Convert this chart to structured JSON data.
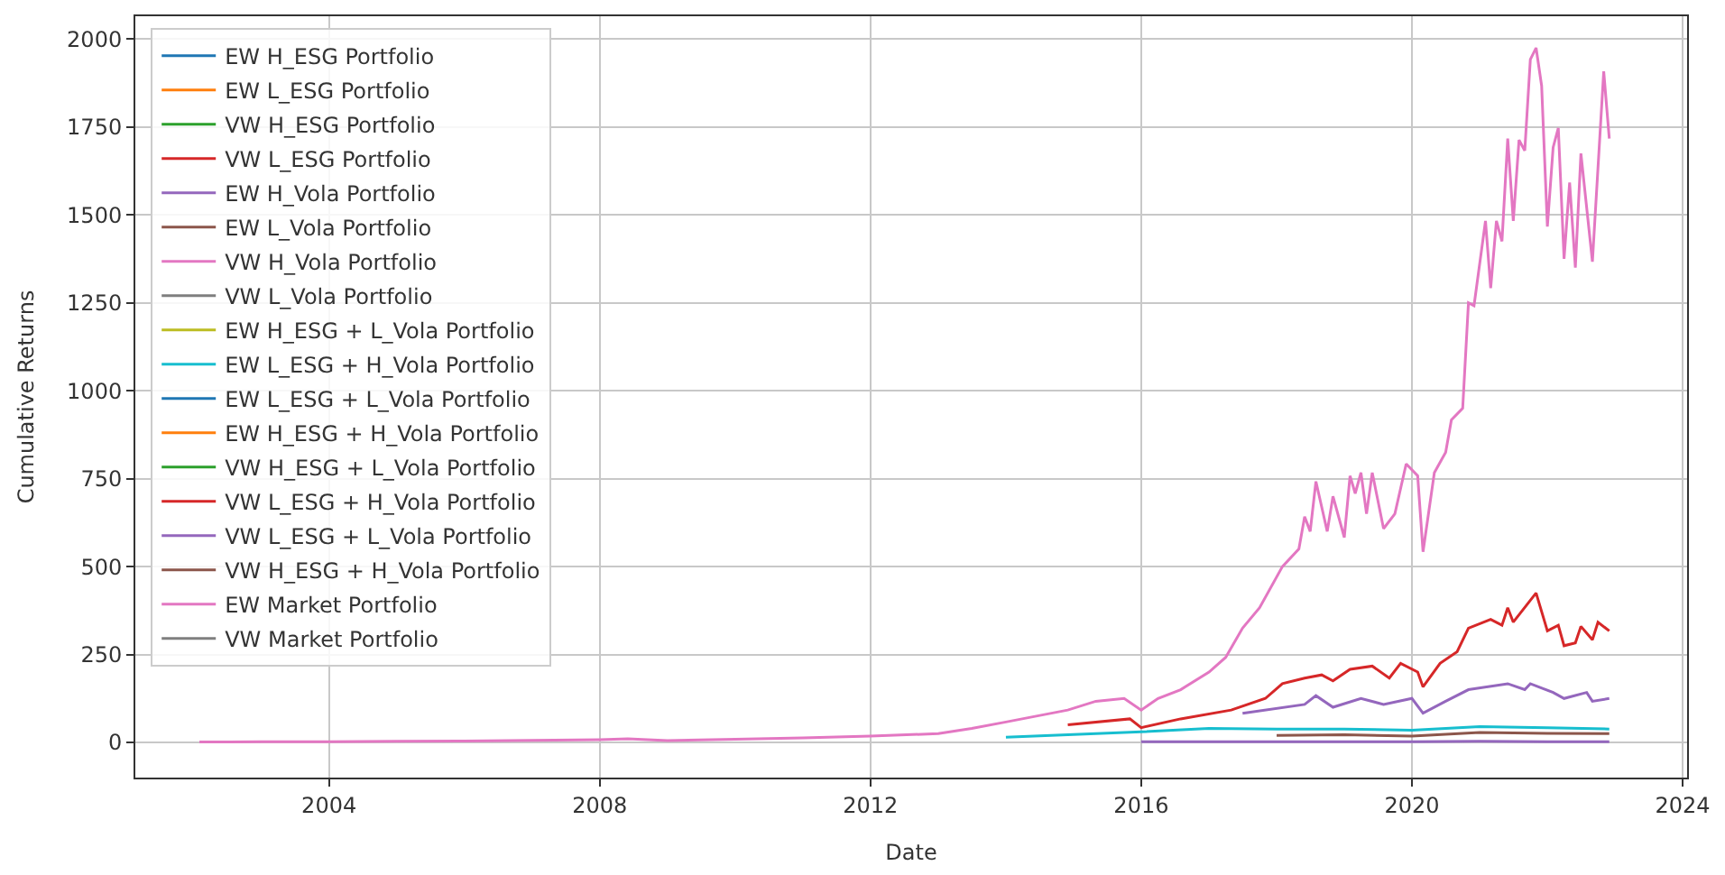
{
  "chart_data": {
    "type": "line",
    "xlabel": "Date",
    "ylabel": "Cumulative Returns",
    "xlim": [
      "2001-02-20",
      "2024-01-25"
    ],
    "xticks": [
      "2004",
      "2008",
      "2012",
      "2016",
      "2020",
      "2024"
    ],
    "ylim": [
      -100,
      2065
    ],
    "yticks": [
      0,
      250,
      500,
      750,
      1000,
      1250,
      1500,
      1750,
      2000
    ],
    "grid": true,
    "legend": "top left",
    "line_style": "solid",
    "x": [
      "2016-01",
      "2018-01",
      "2020-01",
      "2021-01",
      "2022-01",
      "2022-12"
    ],
    "series": [
      {
        "name": "EW H_ESG Portfolio",
        "color": "#1f77b4",
        "values": [
          null,
          null,
          null,
          null,
          null,
          null
        ]
      },
      {
        "name": "EW L_ESG Portfolio",
        "color": "#ff7f0e",
        "values": [
          null,
          null,
          null,
          null,
          null,
          null
        ]
      },
      {
        "name": "VW H_ESG Portfolio",
        "color": "#2ca02c",
        "values": [
          null,
          null,
          null,
          null,
          null,
          null
        ]
      },
      {
        "name": "VW L_ESG Portfolio",
        "color": "#d62728",
        "values": [
          null,
          null,
          null,
          null,
          null,
          null
        ]
      },
      {
        "name": "EW H_Vola Portfolio",
        "color": "#9467bd",
        "values": [
          2,
          2,
          2,
          3,
          2,
          2
        ]
      },
      {
        "name": "EW L_Vola Portfolio",
        "color": "#8c564b",
        "values": [
          null,
          null,
          null,
          null,
          null,
          null
        ]
      },
      {
        "name": "VW H_Vola Portfolio",
        "color": "#e377c2",
        "values": [
          null,
          null,
          null,
          null,
          null,
          null
        ]
      },
      {
        "name": "VW L_Vola Portfolio",
        "color": "#7f7f7f",
        "values": [
          null,
          null,
          null,
          null,
          null,
          null
        ]
      },
      {
        "name": "EW H_ESG + L_Vola Portfolio",
        "color": "#bcbd22",
        "values": [
          null,
          null,
          null,
          null,
          null,
          null
        ]
      },
      {
        "name": "EW L_ESG + H_Vola Portfolio",
        "color": "#17becf",
        "x": [
          "2014-01",
          "2016-01",
          "2017-01",
          "2018-01",
          "2019-01",
          "2020-01",
          "2021-01",
          "2022-01",
          "2022-12"
        ],
        "values": [
          15,
          30,
          40,
          38,
          38,
          35,
          45,
          42,
          38
        ]
      },
      {
        "name": "EW L_ESG + L_Vola Portfolio",
        "color": "#1f77b4",
        "values": [
          null,
          null,
          null,
          null,
          null,
          null
        ]
      },
      {
        "name": "EW H_ESG + H_Vola Portfolio",
        "color": "#ff7f0e",
        "values": [
          null,
          null,
          null,
          null,
          null,
          null
        ]
      },
      {
        "name": "VW H_ESG + L_Vola Portfolio",
        "color": "#2ca02c",
        "values": [
          null,
          null,
          null,
          null,
          null,
          null
        ]
      },
      {
        "name": "VW L_ESG + H_Vola Portfolio",
        "color": "#d62728",
        "x": [
          "2014-12",
          "2015-11",
          "2016-01",
          "2016-08",
          "2017-05",
          "2017-11",
          "2018-02",
          "2018-06",
          "2018-09",
          "2018-11",
          "2019-02",
          "2019-06",
          "2019-09",
          "2019-11",
          "2020-02",
          "2020-03",
          "2020-06",
          "2020-09",
          "2020-11",
          "2021-03",
          "2021-05",
          "2021-06",
          "2021-07",
          "2021-11",
          "2022-01",
          "2022-03",
          "2022-04",
          "2022-06",
          "2022-07",
          "2022-09",
          "2022-10",
          "2022-12"
        ],
        "values": [
          50,
          67,
          42,
          67,
          92,
          125,
          167,
          183,
          192,
          175,
          208,
          217,
          183,
          225,
          200,
          158,
          225,
          258,
          325,
          350,
          333,
          383,
          342,
          425,
          317,
          333,
          275,
          283,
          330,
          292,
          342,
          317
        ]
      },
      {
        "name": "VW L_ESG + L_Vola Portfolio",
        "color": "#9467bd",
        "x": [
          "2017-07",
          "2018-06",
          "2018-08",
          "2018-11",
          "2019-04",
          "2019-08",
          "2020-01",
          "2020-03",
          "2020-07",
          "2020-11",
          "2021-06",
          "2021-09",
          "2021-10",
          "2022-02",
          "2022-04",
          "2022-08",
          "2022-09",
          "2022-12"
        ],
        "values": [
          83,
          108,
          133,
          100,
          125,
          108,
          125,
          83,
          117,
          150,
          167,
          150,
          167,
          142,
          125,
          142,
          117,
          125
        ]
      },
      {
        "name": "VW H_ESG + H_Vola Portfolio",
        "color": "#8c564b",
        "x": [
          "2018-01",
          "2019-01",
          "2020-01",
          "2021-01",
          "2022-01",
          "2022-12"
        ],
        "values": [
          20,
          22,
          18,
          28,
          26,
          25
        ]
      },
      {
        "name": "EW Market Portfolio",
        "color": "#e377c2",
        "x": [
          "2002-02",
          "2003-01",
          "2004-01",
          "2005-01",
          "2006-01",
          "2007-01",
          "2008-01",
          "2008-06",
          "2009-01",
          "2010-01",
          "2011-01",
          "2012-01",
          "2013-01",
          "2013-07",
          "2014-01",
          "2014-12",
          "2015-05",
          "2015-10",
          "2016-01",
          "2016-04",
          "2016-08",
          "2017-01",
          "2017-04",
          "2017-07",
          "2017-10",
          "2018-02",
          "2018-05",
          "2018-06",
          "2018-07",
          "2018-08",
          "2018-10",
          "2018-11",
          "2019-01",
          "2019-02",
          "2019-03",
          "2019-04",
          "2019-05",
          "2019-06",
          "2019-08",
          "2019-10",
          "2019-12",
          "2020-02",
          "2020-03",
          "2020-05",
          "2020-07",
          "2020-08",
          "2020-10",
          "2020-11",
          "2020-12",
          "2021-02",
          "2021-03",
          "2021-04",
          "2021-05",
          "2021-06",
          "2021-07",
          "2021-08",
          "2021-09",
          "2021-10",
          "2021-11",
          "2021-12",
          "2022-01",
          "2022-02",
          "2022-03",
          "2022-04",
          "2022-05",
          "2022-06",
          "2022-07",
          "2022-09",
          "2022-11",
          "2022-12"
        ],
        "values": [
          1,
          2,
          2,
          3,
          4,
          6,
          8,
          10,
          5,
          9,
          13,
          18,
          25,
          40,
          58,
          92,
          117,
          125,
          92,
          125,
          150,
          200,
          242,
          325,
          383,
          500,
          550,
          642,
          600,
          742,
          600,
          700,
          583,
          758,
          708,
          767,
          650,
          767,
          608,
          650,
          792,
          758,
          542,
          767,
          825,
          917,
          950,
          1250,
          1242,
          1483,
          1292,
          1483,
          1425,
          1717,
          1483,
          1713,
          1683,
          1942,
          1975,
          1867,
          1467,
          1692,
          1747,
          1375,
          1592,
          1350,
          1675,
          1367,
          1908,
          1717
        ]
      },
      {
        "name": "VW Market Portfolio",
        "color": "#7f7f7f",
        "values": [
          null,
          null,
          null,
          null,
          null,
          null
        ]
      }
    ]
  }
}
